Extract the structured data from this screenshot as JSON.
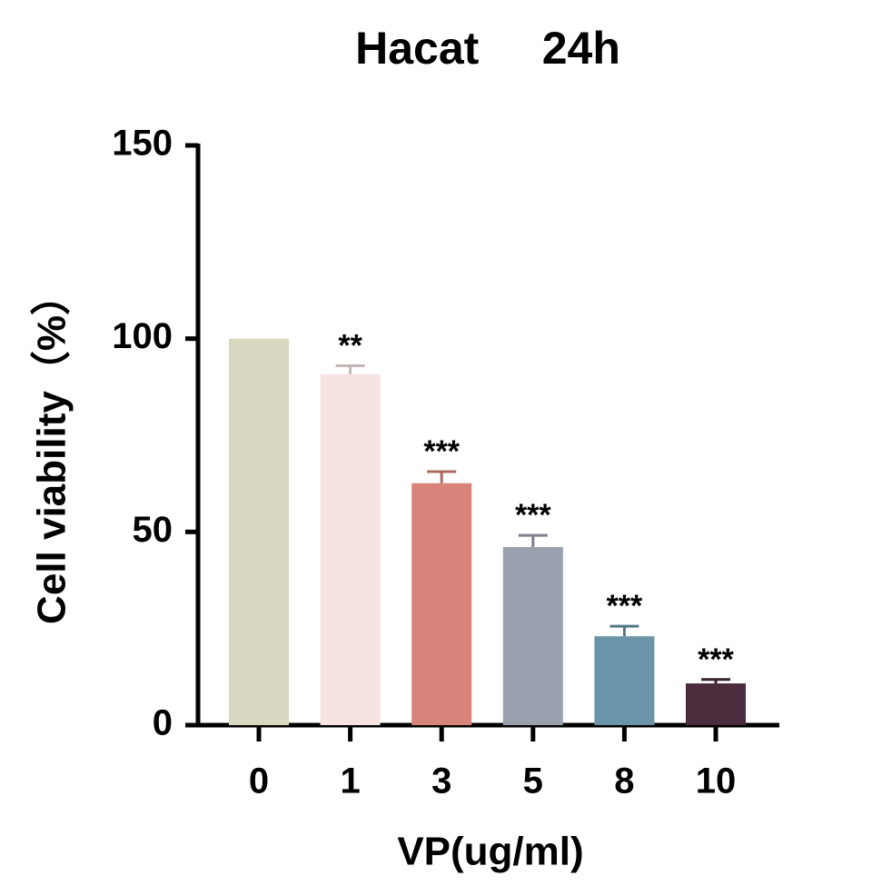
{
  "chart_data": {
    "type": "bar",
    "title": "Hacat     24h",
    "xlabel": "VP(ug/ml)",
    "ylabel": "Cell viability（%）",
    "categories": [
      "0",
      "1",
      "3",
      "5",
      "8",
      "10"
    ],
    "values": [
      100,
      90.8,
      62.6,
      46.1,
      23.0,
      10.8
    ],
    "errors": [
      0,
      2.2,
      3.0,
      3.0,
      2.6,
      1.0
    ],
    "significance": [
      null,
      "**",
      "***",
      "***",
      "***",
      "***"
    ],
    "colors": [
      "#d9d8c1",
      "#f5e4e1",
      "#d9847a",
      "#9aa0ae",
      "#6a95a8",
      "#4a2c3c"
    ],
    "ylim": [
      0,
      150
    ],
    "yticks": [
      0,
      50,
      100,
      150
    ],
    "grid": false
  }
}
